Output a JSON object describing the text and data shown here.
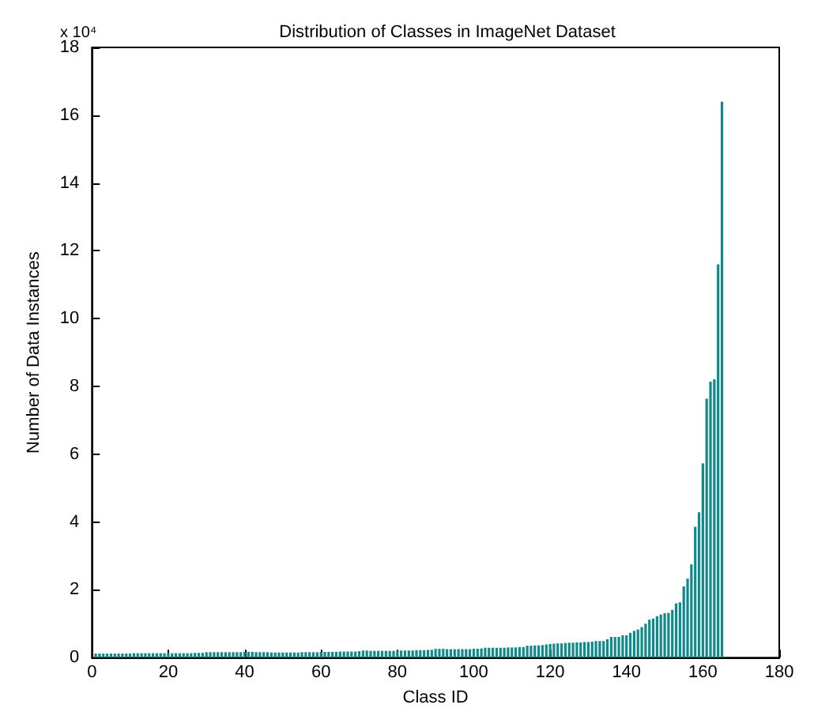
{
  "chart_data": {
    "type": "bar",
    "title": "Distribution of Classes in ImageNet Dataset",
    "xlabel": "Class ID",
    "ylabel": "Number of Data Instances",
    "annotations": [
      "x 10⁴"
    ],
    "color": "#0f8a8a",
    "grid": false,
    "x": [
      1,
      2,
      3,
      4,
      5,
      6,
      7,
      8,
      9,
      10,
      11,
      12,
      13,
      14,
      15,
      16,
      17,
      18,
      19,
      20,
      21,
      22,
      23,
      24,
      25,
      26,
      27,
      28,
      29,
      30,
      31,
      32,
      33,
      34,
      35,
      36,
      37,
      38,
      39,
      40,
      41,
      42,
      43,
      44,
      45,
      46,
      47,
      48,
      49,
      50,
      51,
      52,
      53,
      54,
      55,
      56,
      57,
      58,
      59,
      60,
      61,
      62,
      63,
      64,
      65,
      66,
      67,
      68,
      69,
      70,
      71,
      72,
      73,
      74,
      75,
      76,
      77,
      78,
      79,
      80,
      81,
      82,
      83,
      84,
      85,
      86,
      87,
      88,
      89,
      90,
      91,
      92,
      93,
      94,
      95,
      96,
      97,
      98,
      99,
      100,
      101,
      102,
      103,
      104,
      105,
      106,
      107,
      108,
      109,
      110,
      111,
      112,
      113,
      114,
      115,
      116,
      117,
      118,
      119,
      120,
      121,
      122,
      123,
      124,
      125,
      126,
      127,
      128,
      129,
      130,
      131,
      132,
      133,
      134,
      135,
      136,
      137,
      138,
      139,
      140,
      141,
      142,
      143,
      144,
      145,
      146,
      147,
      148,
      149,
      150,
      151,
      152,
      153,
      154,
      155,
      156,
      157,
      158,
      159,
      160,
      161,
      162,
      163,
      164,
      165
    ],
    "values": [
      0.12,
      0.12,
      0.12,
      0.12,
      0.12,
      0.12,
      0.12,
      0.12,
      0.12,
      0.12,
      0.13,
      0.13,
      0.13,
      0.13,
      0.13,
      0.13,
      0.13,
      0.13,
      0.13,
      0.13,
      0.13,
      0.13,
      0.13,
      0.13,
      0.13,
      0.13,
      0.14,
      0.14,
      0.14,
      0.16,
      0.16,
      0.16,
      0.16,
      0.16,
      0.16,
      0.16,
      0.16,
      0.16,
      0.16,
      0.17,
      0.17,
      0.17,
      0.16,
      0.16,
      0.16,
      0.16,
      0.15,
      0.15,
      0.15,
      0.15,
      0.15,
      0.15,
      0.15,
      0.15,
      0.16,
      0.16,
      0.16,
      0.16,
      0.16,
      0.17,
      0.17,
      0.17,
      0.17,
      0.17,
      0.18,
      0.18,
      0.18,
      0.18,
      0.18,
      0.19,
      0.21,
      0.21,
      0.2,
      0.2,
      0.2,
      0.2,
      0.2,
      0.2,
      0.2,
      0.2,
      0.21,
      0.21,
      0.21,
      0.21,
      0.22,
      0.22,
      0.22,
      0.23,
      0.23,
      0.26,
      0.26,
      0.26,
      0.25,
      0.25,
      0.25,
      0.25,
      0.25,
      0.25,
      0.25,
      0.26,
      0.26,
      0.27,
      0.29,
      0.29,
      0.29,
      0.29,
      0.29,
      0.29,
      0.3,
      0.3,
      0.3,
      0.31,
      0.31,
      0.35,
      0.35,
      0.36,
      0.36,
      0.37,
      0.39,
      0.4,
      0.41,
      0.42,
      0.42,
      0.43,
      0.44,
      0.44,
      0.45,
      0.45,
      0.46,
      0.46,
      0.47,
      0.49,
      0.49,
      0.49,
      0.54,
      0.61,
      0.61,
      0.61,
      0.66,
      0.66,
      0.73,
      0.79,
      0.83,
      0.9,
      1.0,
      1.12,
      1.15,
      1.22,
      1.27,
      1.31,
      1.32,
      1.41,
      1.6,
      1.63,
      2.1,
      2.33,
      2.75,
      3.86,
      4.29,
      5.73,
      7.64,
      8.14,
      8.21,
      11.6,
      16.4
    ],
    "xlim": [
      0,
      180
    ],
    "xticks": [
      0,
      20,
      40,
      60,
      80,
      100,
      120,
      140,
      160,
      180
    ],
    "ylim": [
      0,
      18
    ],
    "yticks": [
      0,
      2,
      4,
      6,
      8,
      10,
      12,
      14,
      16,
      18
    ]
  }
}
